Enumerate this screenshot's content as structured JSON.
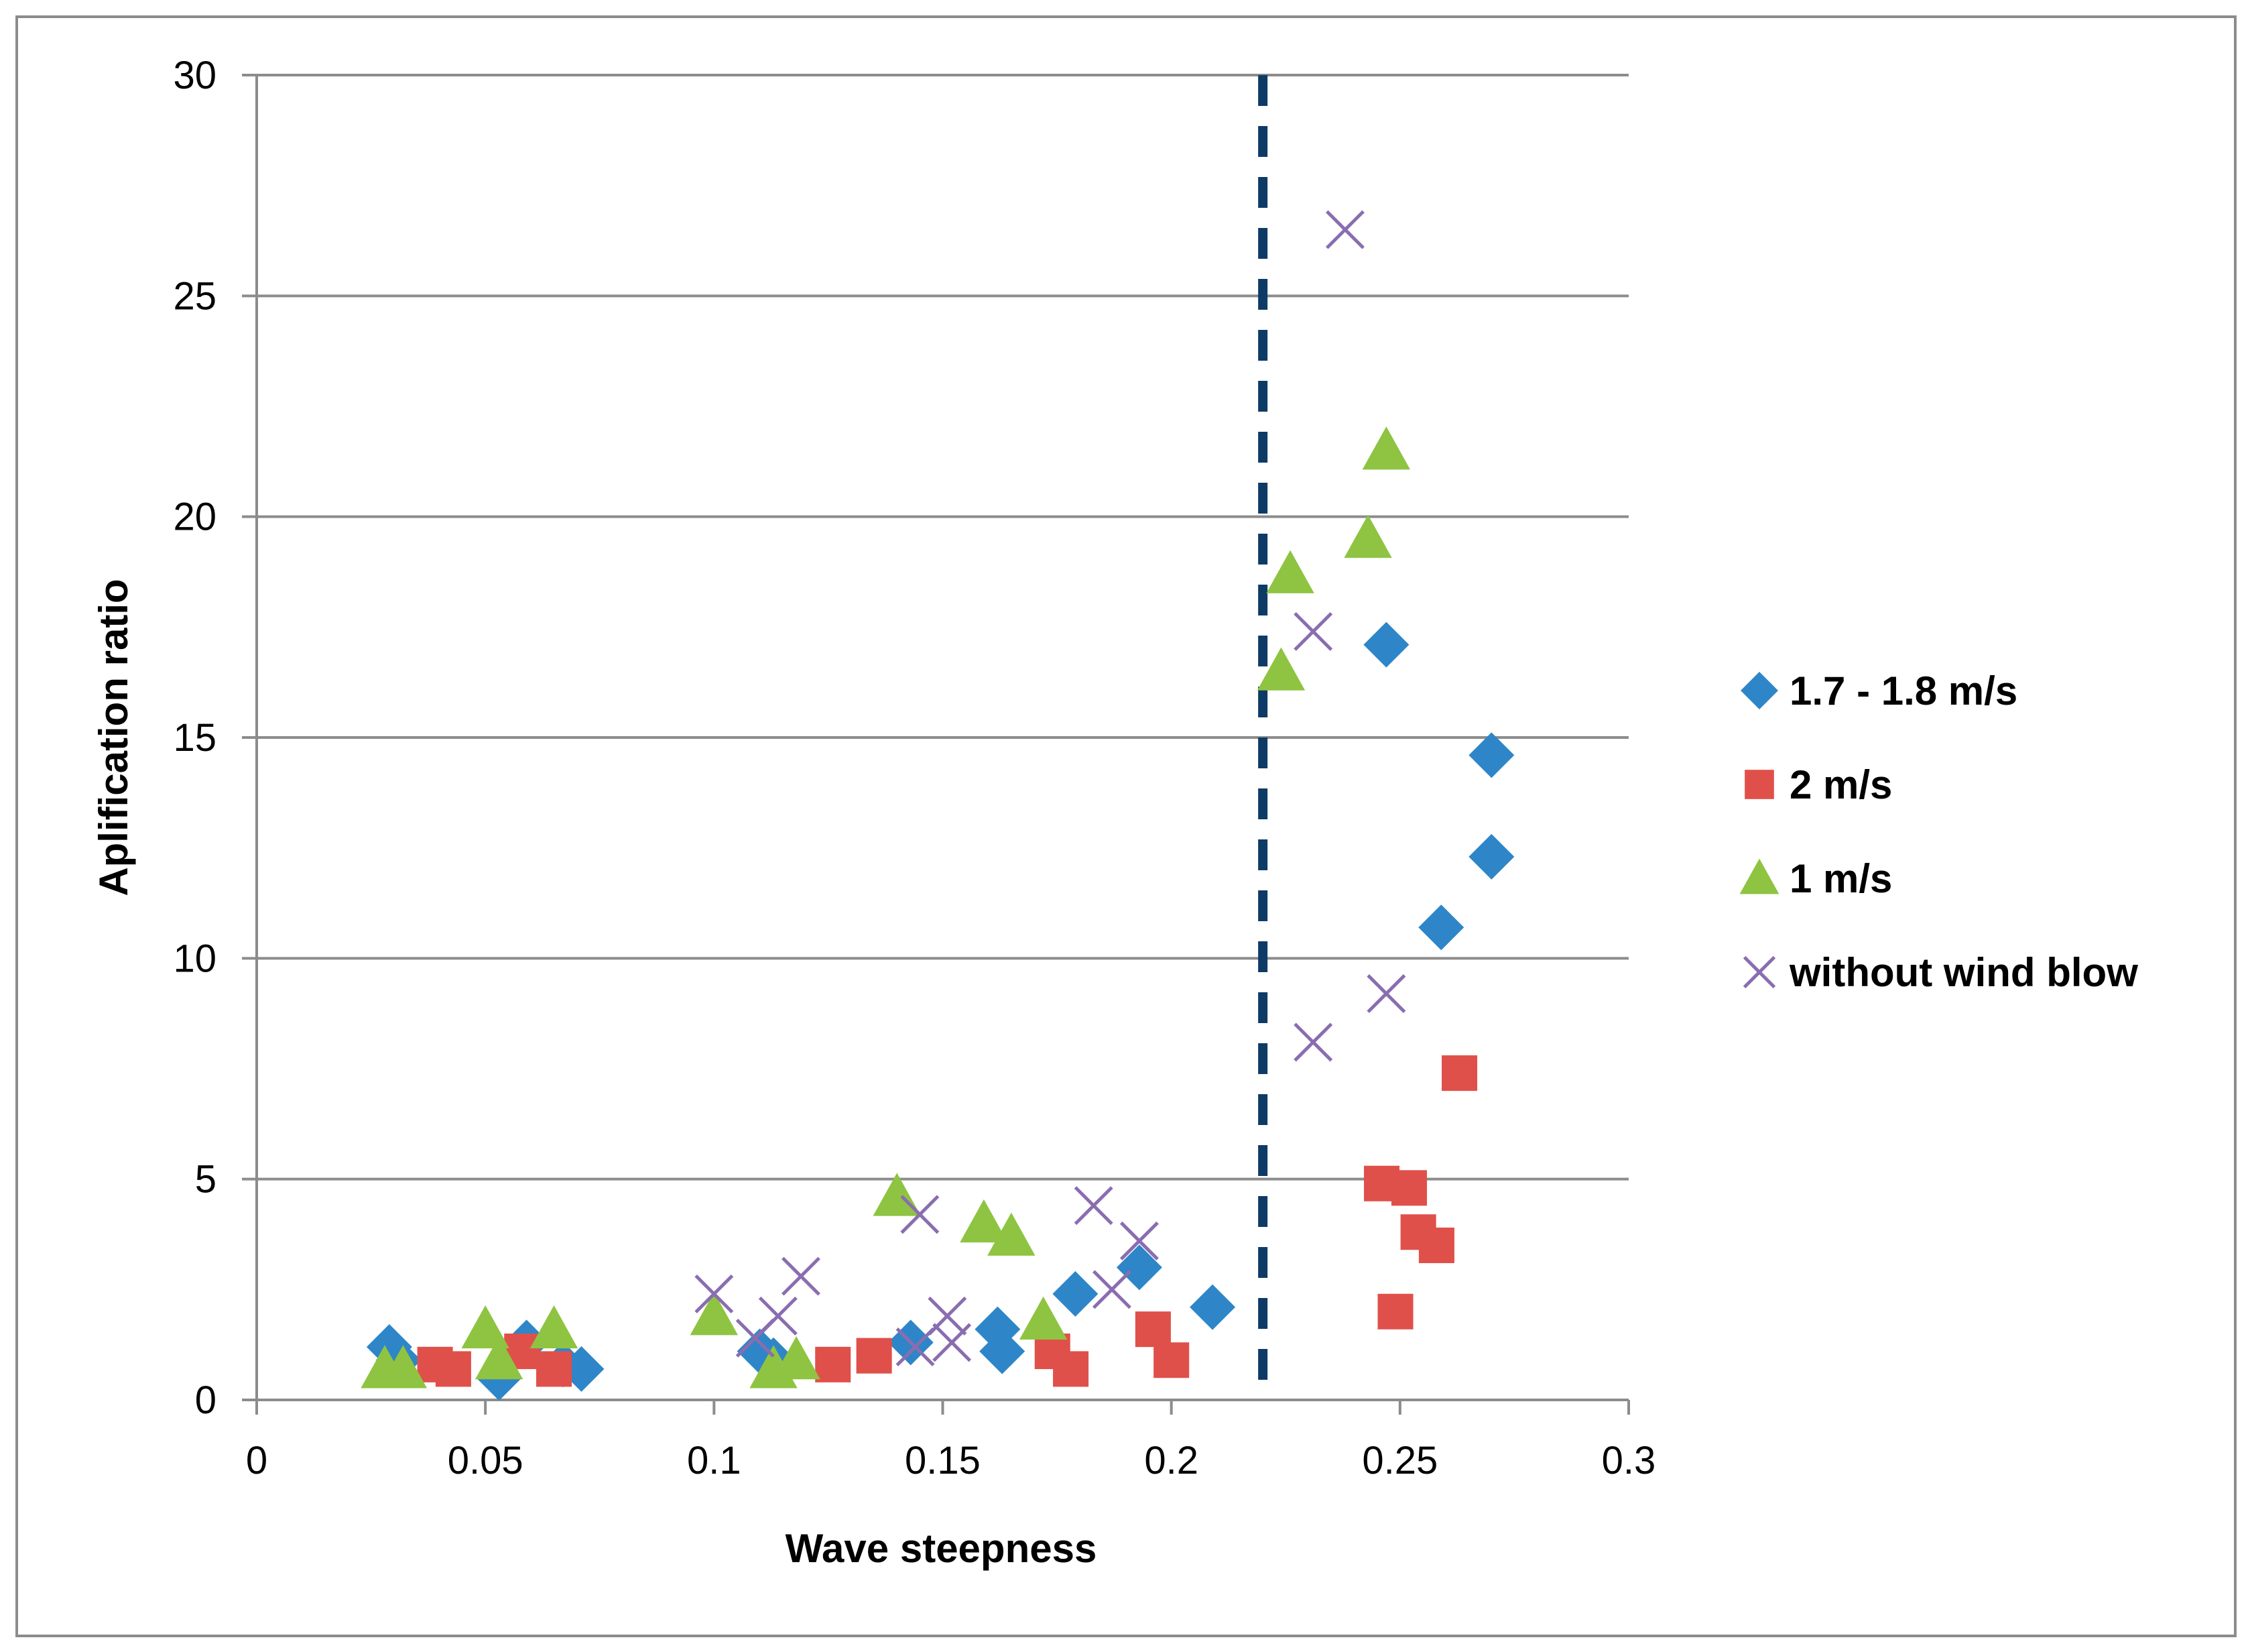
{
  "chart_data": {
    "type": "scatter",
    "title": "",
    "xlabel": "Wave steepness",
    "ylabel": "Aplification ratio",
    "xlim": [
      0,
      0.3
    ],
    "ylim": [
      0,
      30
    ],
    "x_ticks": [
      0,
      0.05,
      0.1,
      0.15,
      0.2,
      0.25,
      0.3
    ],
    "x_tick_labels": [
      "0",
      "0.05",
      "0.1",
      "0.15",
      "0.2",
      "0.25",
      "0.3"
    ],
    "y_ticks": [
      0,
      5,
      10,
      15,
      20,
      25,
      30
    ],
    "y_tick_labels": [
      "0",
      "5",
      "10",
      "15",
      "20",
      "25",
      "30"
    ],
    "grid": "horizontal",
    "legend_position": "right",
    "reference_line": {
      "orientation": "vertical",
      "x": 0.22,
      "style": "dashed",
      "color": "#0e3a66"
    },
    "series": [
      {
        "name": "1.7 - 1.8 m/s",
        "marker": "diamond",
        "color": "#2e86c8",
        "points": [
          [
            0.029,
            1.2
          ],
          [
            0.031,
            0.9
          ],
          [
            0.053,
            0.5
          ],
          [
            0.059,
            1.3
          ],
          [
            0.067,
            0.8
          ],
          [
            0.071,
            0.7
          ],
          [
            0.11,
            1.1
          ],
          [
            0.113,
            0.9
          ],
          [
            0.143,
            1.3
          ],
          [
            0.162,
            1.6
          ],
          [
            0.163,
            1.1
          ],
          [
            0.179,
            2.4
          ],
          [
            0.193,
            3.0
          ],
          [
            0.209,
            2.1
          ],
          [
            0.247,
            17.1
          ],
          [
            0.259,
            10.7
          ],
          [
            0.27,
            14.6
          ],
          [
            0.27,
            12.3
          ]
        ]
      },
      {
        "name": "2 m/s",
        "marker": "square",
        "color": "#e0504a",
        "points": [
          [
            0.039,
            0.8
          ],
          [
            0.043,
            0.7
          ],
          [
            0.058,
            1.1
          ],
          [
            0.065,
            0.7
          ],
          [
            0.126,
            0.8
          ],
          [
            0.135,
            1.0
          ],
          [
            0.174,
            1.1
          ],
          [
            0.178,
            0.7
          ],
          [
            0.196,
            1.6
          ],
          [
            0.2,
            0.9
          ],
          [
            0.246,
            4.9
          ],
          [
            0.252,
            4.8
          ],
          [
            0.254,
            3.8
          ],
          [
            0.258,
            3.5
          ],
          [
            0.249,
            2.0
          ],
          [
            0.263,
            7.4
          ]
        ]
      },
      {
        "name": "1 m/s",
        "marker": "triangle",
        "color": "#8ec441",
        "points": [
          [
            0.028,
            0.7
          ],
          [
            0.032,
            0.7
          ],
          [
            0.05,
            1.6
          ],
          [
            0.053,
            0.9
          ],
          [
            0.065,
            1.6
          ],
          [
            0.1,
            1.9
          ],
          [
            0.113,
            0.7
          ],
          [
            0.118,
            0.9
          ],
          [
            0.14,
            4.6
          ],
          [
            0.159,
            4.0
          ],
          [
            0.165,
            3.7
          ],
          [
            0.172,
            1.8
          ],
          [
            0.224,
            16.5
          ],
          [
            0.226,
            18.7
          ],
          [
            0.243,
            19.5
          ],
          [
            0.247,
            21.5
          ]
        ]
      },
      {
        "name": "without wind blow",
        "marker": "x",
        "color": "#8a6db0",
        "points": [
          [
            0.1,
            2.4
          ],
          [
            0.109,
            1.4
          ],
          [
            0.114,
            1.9
          ],
          [
            0.119,
            2.8
          ],
          [
            0.144,
            1.2
          ],
          [
            0.145,
            4.2
          ],
          [
            0.151,
            1.9
          ],
          [
            0.152,
            1.3
          ],
          [
            0.183,
            4.4
          ],
          [
            0.187,
            2.5
          ],
          [
            0.193,
            3.6
          ],
          [
            0.231,
            8.1
          ],
          [
            0.231,
            17.4
          ],
          [
            0.238,
            26.5
          ],
          [
            0.247,
            9.2
          ]
        ]
      }
    ]
  }
}
